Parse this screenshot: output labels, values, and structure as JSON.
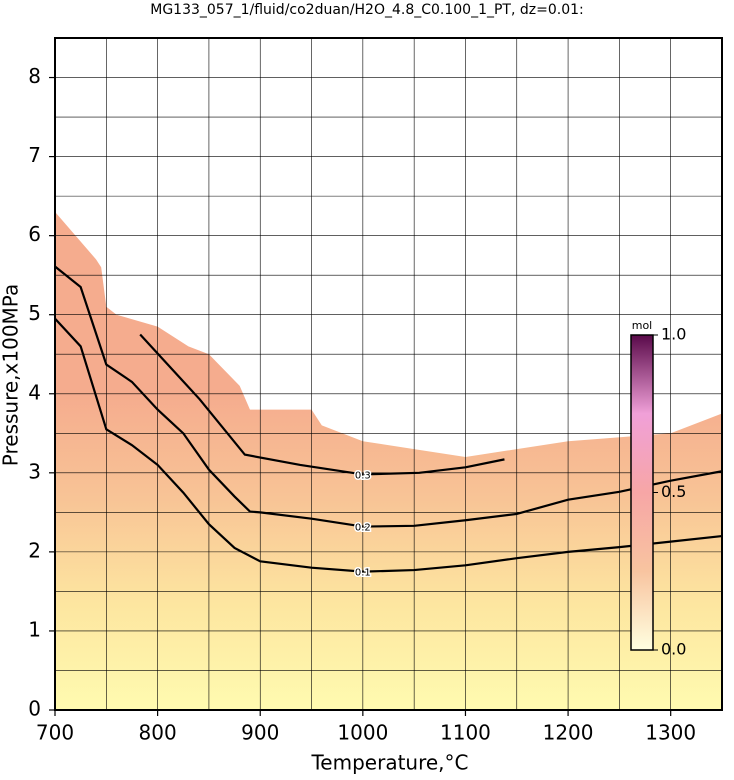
{
  "chart_data": {
    "type": "contour",
    "title": "MG133_057_1/fluid/co2duan/H2O_4.8_C0.100_1_PT, dz=0.01:",
    "x_label": "Temperature,°C",
    "y_label": "Pressure,x100MPa",
    "xlim": [
      700,
      1350
    ],
    "ylim": [
      0,
      8.5
    ],
    "xticks": [
      700,
      800,
      900,
      1000,
      1100,
      1200,
      1300
    ],
    "yticks": [
      0,
      1,
      2,
      3,
      4,
      5,
      6,
      7,
      8
    ],
    "xgrid": [
      750,
      850,
      950,
      1050,
      1150,
      1250
    ],
    "ygrid": [
      0.5,
      1.5,
      2.5,
      3.5,
      4.5,
      5.5,
      6.5,
      7.5
    ],
    "grid": true,
    "region": {
      "colors": [
        "#fffbb0",
        "#fde6a0",
        "#f8c496",
        "#f5ac8e"
      ],
      "x": [
        700,
        720,
        740,
        745,
        750,
        760,
        800,
        830,
        850,
        880,
        890,
        950,
        960,
        1000,
        1050,
        1100,
        1150,
        1200,
        1300,
        1350
      ],
      "values": [
        6.3,
        6.0,
        5.7,
        5.6,
        5.1,
        5.0,
        4.85,
        4.6,
        4.5,
        4.1,
        3.8,
        3.8,
        3.6,
        3.4,
        3.3,
        3.2,
        3.3,
        3.4,
        3.5,
        3.75
      ]
    },
    "series": [
      {
        "name": "0.1",
        "color": "#000000",
        "x": [
          700,
          725,
          750,
          775,
          800,
          825,
          850,
          875,
          900,
          950,
          1000,
          1050,
          1100,
          1150,
          1200,
          1250,
          1300,
          1350
        ],
        "values": [
          4.95,
          4.6,
          3.55,
          3.35,
          3.1,
          2.75,
          2.35,
          2.05,
          1.88,
          1.8,
          1.75,
          1.77,
          1.83,
          1.92,
          2.0,
          2.06,
          2.13,
          2.2
        ]
      },
      {
        "name": "0.2",
        "color": "#000000",
        "x": [
          700,
          725,
          750,
          775,
          800,
          825,
          850,
          875,
          890,
          900,
          950,
          1000,
          1050,
          1100,
          1150,
          1200,
          1250,
          1300,
          1350
        ],
        "values": [
          5.61,
          5.35,
          4.37,
          4.15,
          3.8,
          3.5,
          3.04,
          2.7,
          2.51,
          2.5,
          2.42,
          2.32,
          2.33,
          2.4,
          2.48,
          2.66,
          2.76,
          2.9,
          3.02
        ]
      },
      {
        "name": "0.3",
        "color": "#000000",
        "x": [
          783,
          841,
          885,
          939,
          1000,
          1055,
          1100,
          1138
        ],
        "values": [
          4.75,
          3.93,
          3.23,
          3.1,
          2.98,
          3.0,
          3.07,
          3.17
        ]
      }
    ],
    "colorbar": {
      "label": "mol",
      "lim": [
        0,
        1
      ],
      "ticks": [
        {
          "value": 0,
          "label": "0.0"
        },
        {
          "value": 0.5,
          "label": "0.5"
        },
        {
          "value": 1,
          "label": "1.0"
        }
      ],
      "colors": [
        "#ffffe0",
        "#f8c4a0",
        "#f7a6a6",
        "#f0a0d8",
        "#5a0a4a"
      ]
    }
  }
}
